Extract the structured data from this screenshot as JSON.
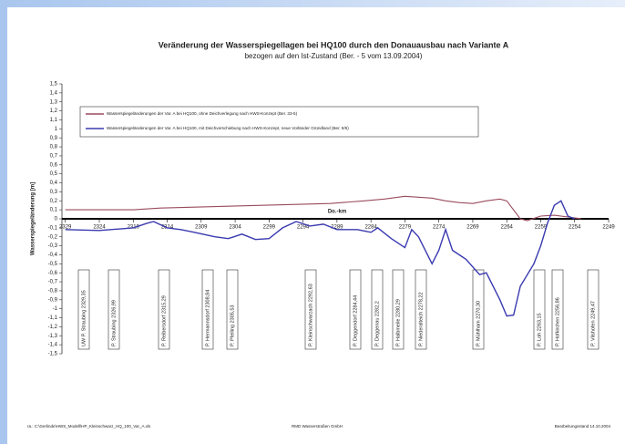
{
  "chart_data": {
    "type": "line",
    "title": "Veränderung der Wasserspiegellagen bei HQ100 durch den Donauausbau nach Variante A",
    "subtitle": "bezogen auf den Ist-Zustand (Ber. - 5 vom 13.09.2004)",
    "ylabel": "Wasserspiegeländerung [m]",
    "xlabel": "Do.-km",
    "xlim": [
      2329.5,
      2249
    ],
    "xticks": [
      2329,
      2324,
      2319,
      2314,
      2309,
      2304,
      2299,
      2294,
      2289,
      2284,
      2279,
      2274,
      2269,
      2264,
      2259,
      2254,
      2249
    ],
    "ylim": [
      -1.5,
      1.5
    ],
    "yticks": [
      {
        "value": 1.5,
        "label": "1,5"
      },
      {
        "value": 1.4,
        "label": "1,4"
      },
      {
        "value": 1.3,
        "label": "1,3"
      },
      {
        "value": 1.2,
        "label": "1,2"
      },
      {
        "value": 1.1,
        "label": "1,1"
      },
      {
        "value": 1.0,
        "label": "1"
      },
      {
        "value": 0.9,
        "label": "0,9"
      },
      {
        "value": 0.8,
        "label": "0,8"
      },
      {
        "value": 0.7,
        "label": "0,7"
      },
      {
        "value": 0.6,
        "label": "0,6"
      },
      {
        "value": 0.5,
        "label": "0,5"
      },
      {
        "value": 0.4,
        "label": "0,4"
      },
      {
        "value": 0.3,
        "label": "0,3"
      },
      {
        "value": 0.2,
        "label": "0,2"
      },
      {
        "value": 0.1,
        "label": "0,1"
      },
      0,
      {
        "value": -0.1,
        "label": "-0,1"
      },
      {
        "value": -0.2,
        "label": "-0,2"
      },
      {
        "value": -0.3,
        "label": "-0,3"
      },
      {
        "value": -0.4,
        "label": "-0,4"
      },
      {
        "value": -0.5,
        "label": "-0,5"
      },
      {
        "value": -0.6,
        "label": "-0,6"
      },
      {
        "value": -0.7,
        "label": "-0,7"
      },
      {
        "value": -0.8,
        "label": "-0,8"
      },
      {
        "value": -0.9,
        "label": "-0,9"
      },
      {
        "value": -1.0,
        "label": "-1"
      },
      {
        "value": -1.1,
        "label": "-1,1"
      },
      {
        "value": -1.2,
        "label": "-1,2"
      },
      {
        "value": -1.3,
        "label": "-1,3"
      },
      {
        "value": -1.4,
        "label": "-1,4"
      },
      {
        "value": -1.5,
        "label": "-1,5"
      }
    ],
    "series": [
      {
        "name": "Wasserspiegeländerungen der Var. A bei HQ100, ohne Deichverlegung nach HWS-Konzept (Ber. 33-5)",
        "color": "#9a4b5e",
        "x": [
          2329,
          2319,
          2315,
          2305,
          2300,
          2295,
          2290,
          2285,
          2282,
          2279,
          2277,
          2275,
          2273,
          2271,
          2269,
          2267,
          2265,
          2264,
          2262,
          2261,
          2259,
          2257,
          2255,
          2253
        ],
        "values": [
          0.1,
          0.1,
          0.12,
          0.14,
          0.15,
          0.16,
          0.17,
          0.2,
          0.22,
          0.25,
          0.24,
          0.23,
          0.2,
          0.18,
          0.17,
          0.2,
          0.22,
          0.2,
          0.0,
          -0.02,
          0.03,
          0.04,
          0.02,
          0.0
        ]
      },
      {
        "name": "Wasserspiegeländerungen der Var. A bei HQ100, mit Deichverschiebung nach HWS-Konzept, neue Vorländer Gründland (Ber. 9/5)",
        "color": "#3a3ab0",
        "x": [
          2329,
          2324,
          2319,
          2317,
          2316,
          2314,
          2312,
          2310,
          2307,
          2305,
          2303,
          2301,
          2299,
          2297,
          2295,
          2293,
          2291,
          2289,
          2286,
          2284,
          2283,
          2281,
          2279,
          2278,
          2277,
          2275,
          2274,
          2273,
          2272,
          2270,
          2268,
          2267,
          2265,
          2264,
          2263,
          2262,
          2260,
          2259,
          2258,
          2257,
          2256,
          2255,
          2254
        ],
        "values": [
          -0.12,
          -0.13,
          -0.1,
          -0.05,
          -0.03,
          -0.1,
          -0.12,
          -0.15,
          -0.2,
          -0.22,
          -0.17,
          -0.23,
          -0.22,
          -0.1,
          -0.03,
          -0.08,
          -0.06,
          -0.12,
          -0.12,
          -0.15,
          -0.1,
          -0.22,
          -0.32,
          -0.12,
          -0.2,
          -0.5,
          -0.35,
          -0.12,
          -0.35,
          -0.45,
          -0.62,
          -0.6,
          -0.9,
          -1.08,
          -1.07,
          -0.75,
          -0.5,
          -0.3,
          -0.05,
          0.15,
          0.2,
          0.03,
          0.0
        ]
      }
    ],
    "annotations": [
      "UW P. Straubing 2329,35",
      "P. Straubing 2326,99",
      "P. Reibersdorf 2315,29",
      "P. Hermannsdorf 2308,84",
      "P. Pfelling 2305,53",
      "P. Kleinschwarzach 2292,63",
      "P. Deggendorf 2284,44",
      "P. Deggenau 2282,2",
      "P. Halbmeile 2280,29",
      "P. Niederalteich 2278,22",
      "P. Mühlham 2270,30",
      "P. Loh 2263,15",
      "P. Hofkirchen 2256,86",
      "P. Vilshofen 2249,47"
    ]
  },
  "footer": {
    "left": "ra.: C:\\Gerlinde\\HWS_Modell\\HP_Kleinschwarz_HQ_100_Var_A.xls",
    "center": "RMD Wasserstraßen GmbH",
    "right": "Bearbeitungsstand 14.10.2004"
  }
}
